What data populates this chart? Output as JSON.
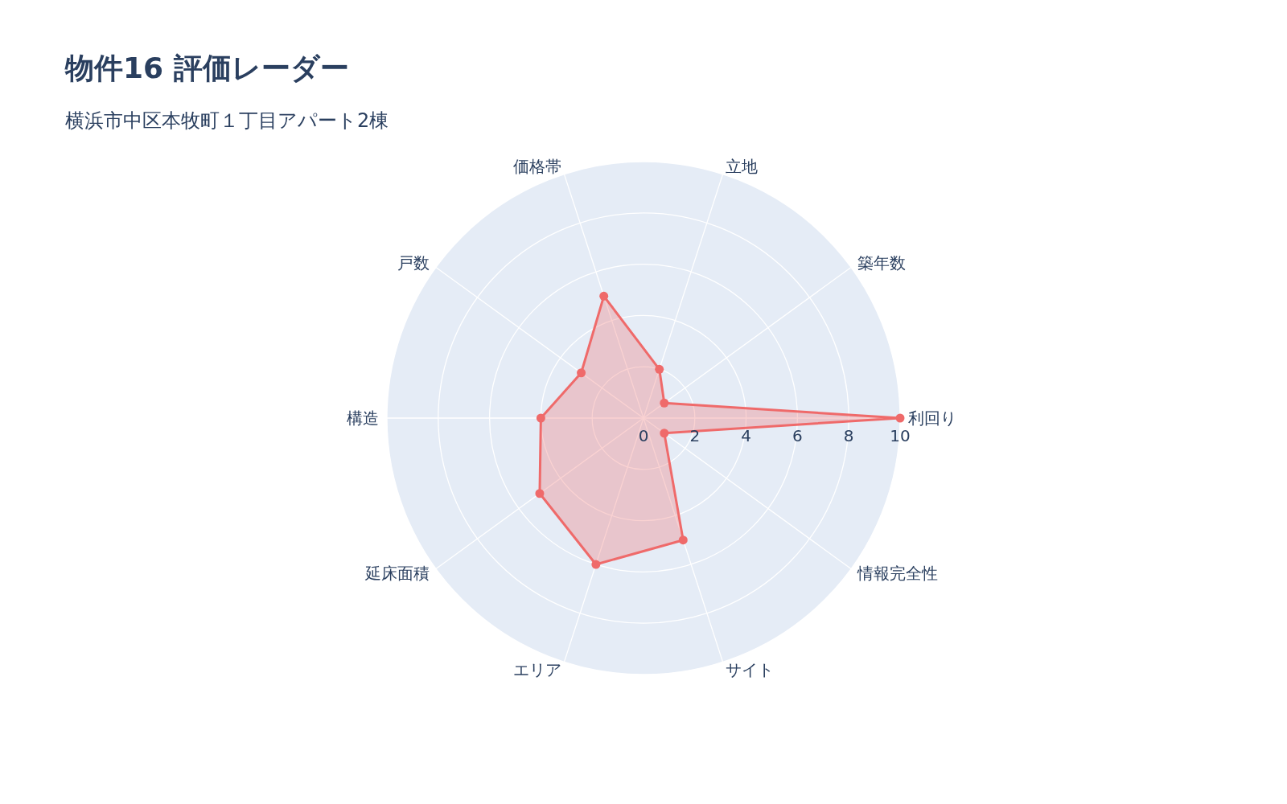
{
  "chart_data": {
    "type": "radar",
    "title": "物件16 評価レーダー",
    "subtitle": "横浜市中区本牧町１丁目アパート2棟",
    "categories": [
      "立地",
      "築年数",
      "利回り",
      "情報完全性",
      "サイト",
      "エリア",
      "延床面積",
      "構造",
      "戸数",
      "価格帯"
    ],
    "series": [
      {
        "color": "#ef6a6a",
        "values": [
          2,
          1,
          10,
          1,
          5,
          6,
          5,
          4,
          3,
          5
        ]
      }
    ],
    "ylim": [
      0,
      10
    ],
    "yticks": [
      0,
      2,
      4,
      6,
      8,
      10
    ],
    "grid": true,
    "marker": "circle",
    "line_style": "solid"
  }
}
